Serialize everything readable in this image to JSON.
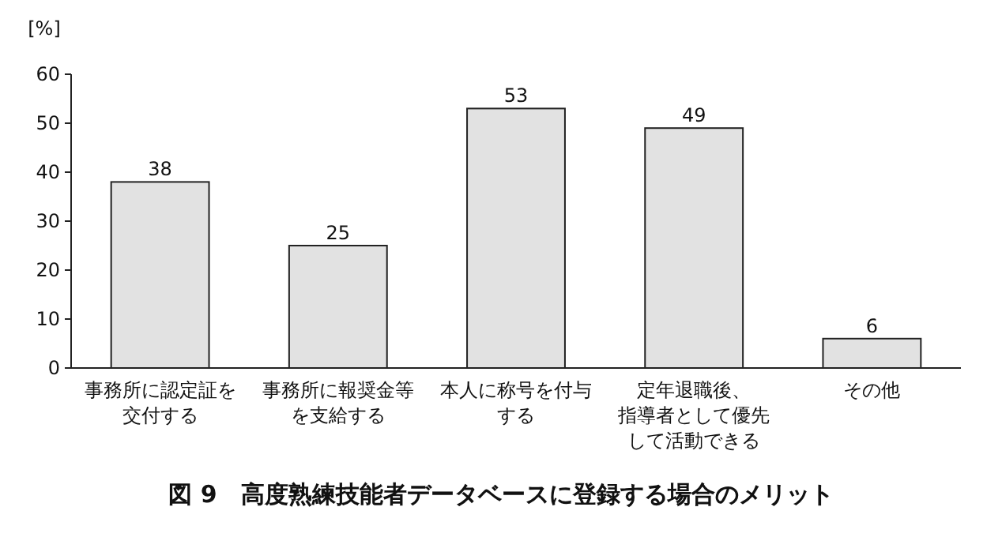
{
  "chart_data": {
    "type": "bar",
    "title": "図 9　高度熟練技能者データベースに登録する場合のメリット",
    "ylabel": "[%]",
    "categories": [
      "事務所に認定証を交付する",
      "事務所に報奨金等を支給する",
      "本人に称号を付与する",
      "定年退職後、指導者として優先して活動できる",
      "その他"
    ],
    "values": [
      38,
      25,
      53,
      49,
      6
    ],
    "color": "#e2e2e2",
    "ylim": [
      0,
      60
    ],
    "yticks": [
      0,
      10,
      20,
      30,
      40,
      50,
      60
    ],
    "data_labels": true
  }
}
